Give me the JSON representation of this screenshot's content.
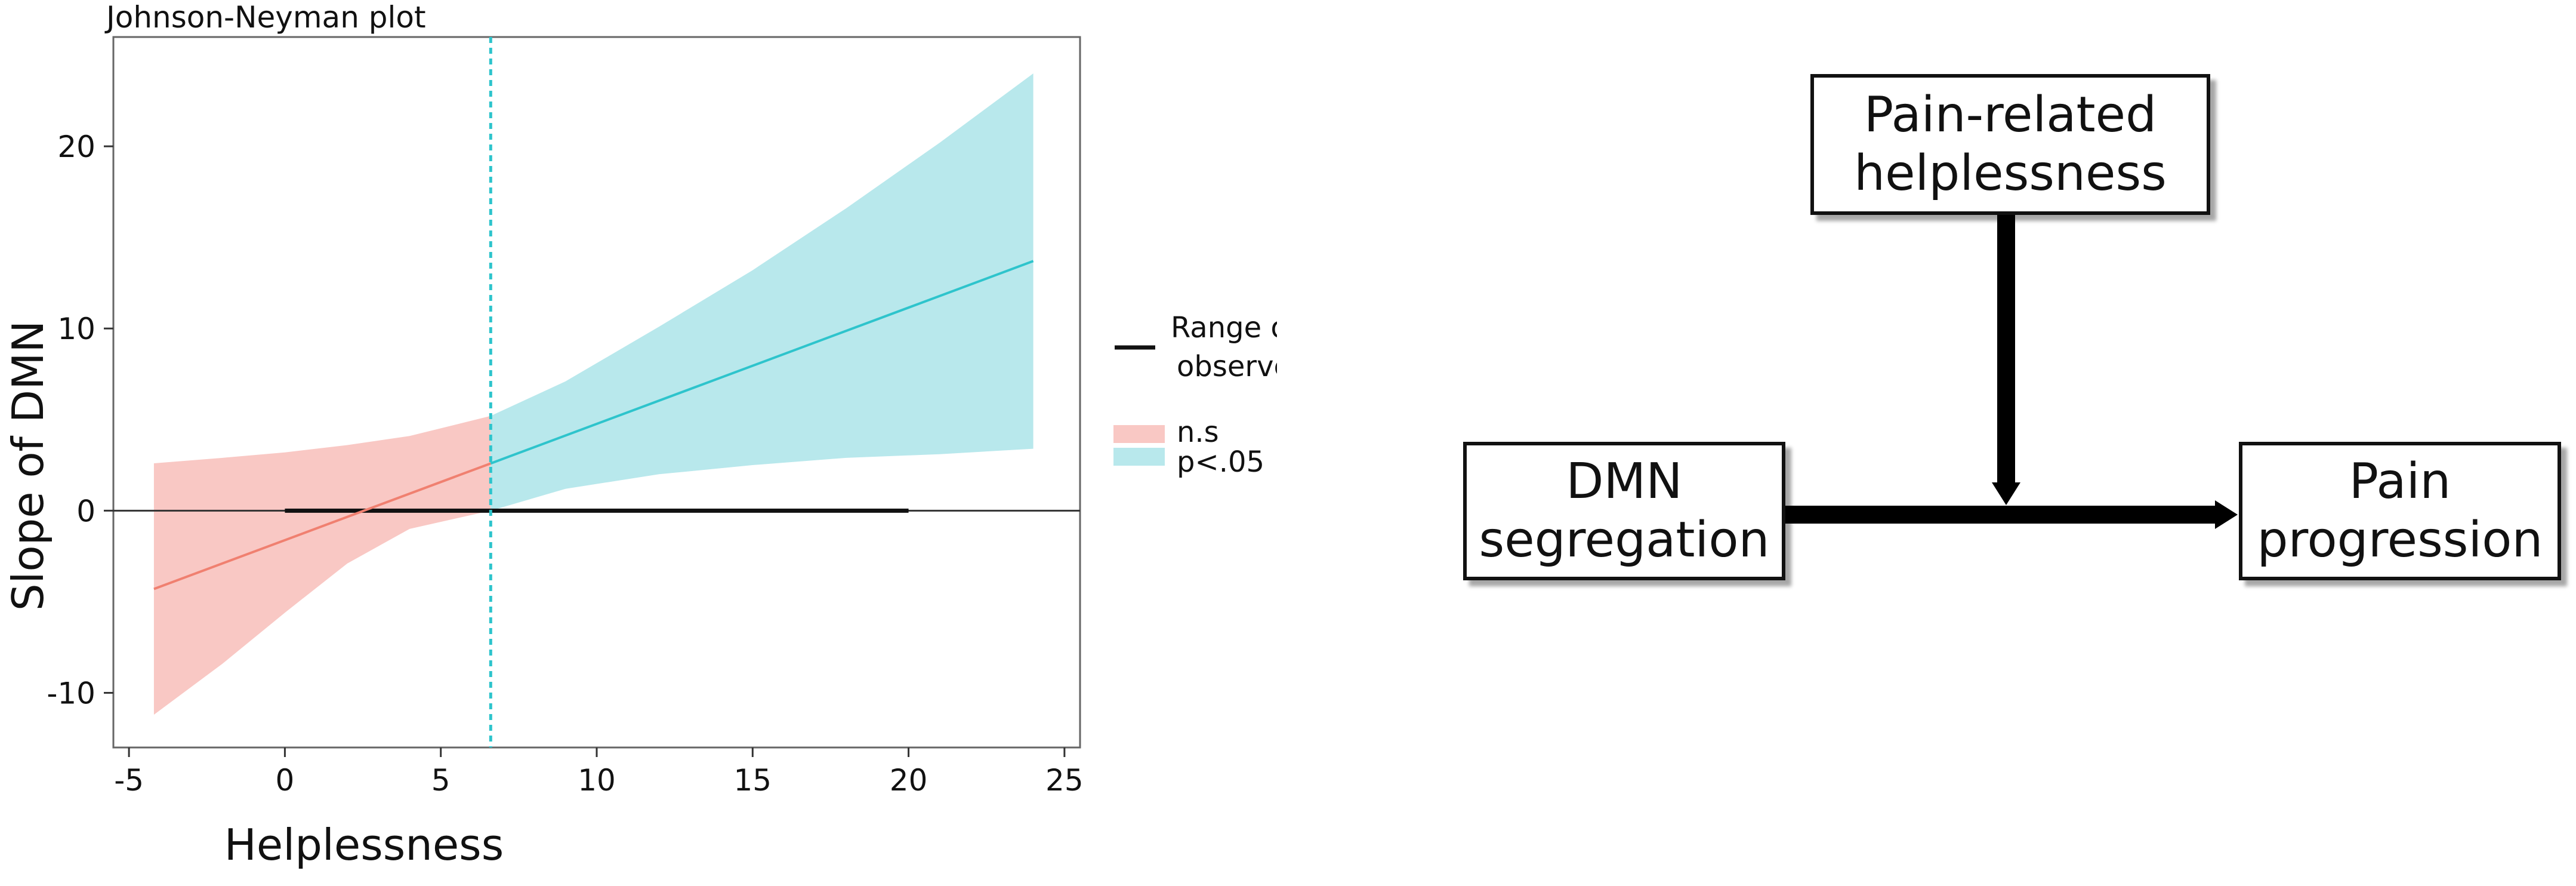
{
  "chart_data": {
    "type": "line",
    "title": "Johnson-Neyman plot",
    "xlabel": "Helplessness",
    "ylabel": "Slope of DMN",
    "xlim": [
      -5.5,
      25.5
    ],
    "ylim": [
      -13,
      26
    ],
    "xticks": [
      -5,
      0,
      5,
      10,
      15,
      20,
      25
    ],
    "yticks": [
      -10,
      0,
      10,
      20
    ],
    "tick_labels_x": [
      "-5",
      "0",
      "5",
      "10",
      "15",
      "20",
      "25"
    ],
    "tick_labels_y": [
      "-10",
      "0",
      "10",
      "20"
    ],
    "jn_threshold": 6.6,
    "x_start": -4.2,
    "x_end": 24,
    "slope_line": {
      "at_x_start": -4.3,
      "at_x_end": 13.7
    },
    "ci_points": [
      {
        "x": -4.2,
        "lower": -11.2,
        "upper": 2.6
      },
      {
        "x": -2,
        "lower": -8.4,
        "upper": 2.9
      },
      {
        "x": 0,
        "lower": -5.6,
        "upper": 3.2
      },
      {
        "x": 2,
        "lower": -2.9,
        "upper": 3.6
      },
      {
        "x": 4,
        "lower": -1.0,
        "upper": 4.1
      },
      {
        "x": 6.6,
        "lower": 0.0,
        "upper": 5.2
      },
      {
        "x": 9,
        "lower": 1.2,
        "upper": 7.1
      },
      {
        "x": 12,
        "lower": 2.0,
        "upper": 10.1
      },
      {
        "x": 15,
        "lower": 2.5,
        "upper": 13.2
      },
      {
        "x": 18,
        "lower": 2.9,
        "upper": 16.6
      },
      {
        "x": 21,
        "lower": 3.1,
        "upper": 20.2
      },
      {
        "x": 24,
        "lower": 3.4,
        "upper": 24.0
      }
    ],
    "observed_range": [
      0,
      20
    ],
    "series": [
      {
        "name": "n.s",
        "color": "#f08070",
        "fill": "#f9c8c4"
      },
      {
        "name": "p<.05",
        "color": "#2ec4cc",
        "fill": "#b8e8ec"
      }
    ],
    "legend": {
      "placement": "right",
      "range_label_line1": "Range of",
      "range_label_line2": "observed data",
      "ns_label": "n.s",
      "sig_label": "p<.05"
    },
    "grid": false
  },
  "diagram": {
    "moderator": "Pain-related\nhelplessness",
    "predictor": "DMN\nsegregation",
    "outcome": "Pain\nprogression"
  }
}
